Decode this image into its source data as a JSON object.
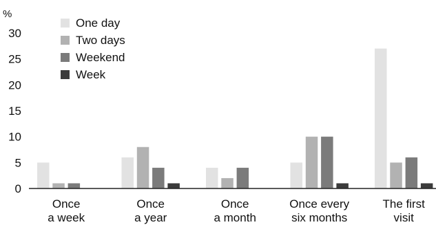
{
  "chart_data": {
    "type": "bar",
    "title": "",
    "unit_label": "%",
    "xlabel": "",
    "ylabel": "",
    "ylim": [
      0,
      30
    ],
    "yticks": [
      0,
      5,
      10,
      15,
      20,
      25,
      30
    ],
    "grid": false,
    "legend_position": "top-left",
    "categories": [
      [
        "Once",
        "a week"
      ],
      [
        "Once",
        "a year"
      ],
      [
        "Once",
        "a month"
      ],
      [
        "Once every",
        "six months"
      ],
      [
        "The first",
        "visit"
      ]
    ],
    "series": [
      {
        "name": "One day",
        "color": "#e2e2e2",
        "values": [
          5,
          6,
          4,
          5,
          27
        ]
      },
      {
        "name": "Two days",
        "color": "#b2b2b2",
        "values": [
          1,
          8,
          2,
          10,
          5
        ]
      },
      {
        "name": "Weekend",
        "color": "#7b7b7b",
        "values": [
          1,
          4,
          4,
          10,
          6
        ]
      },
      {
        "name": "Week",
        "color": "#3b3b3b",
        "values": [
          0,
          1,
          0,
          1,
          1
        ]
      }
    ]
  }
}
